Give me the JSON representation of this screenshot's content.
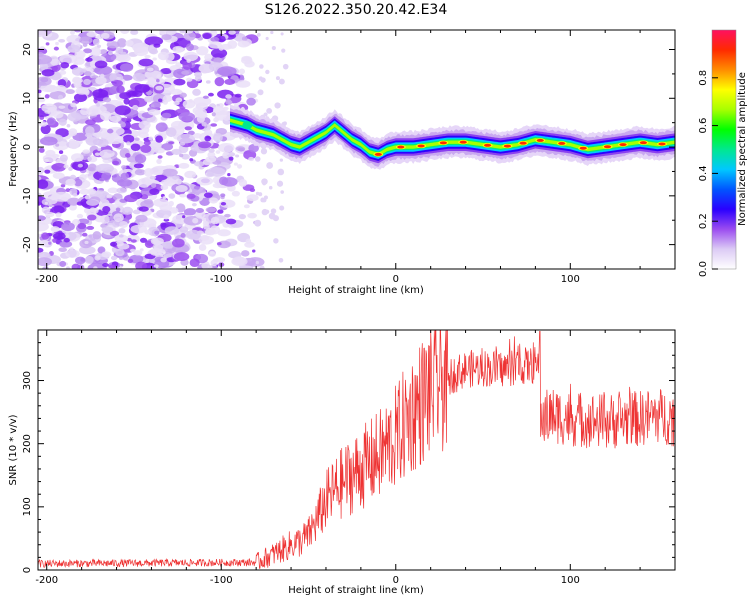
{
  "figure": {
    "title": "S126.2022.350.20.42.E34"
  },
  "chart_data": [
    {
      "type": "heatmap",
      "title": "S126.2022.350.20.42.E34",
      "xlabel": "Height of straight line (km)",
      "ylabel": "Frequency (Hz)",
      "xlim": [
        -205,
        160
      ],
      "ylim": [
        -25,
        24
      ],
      "xticks": [
        -200,
        -100,
        0,
        100
      ],
      "yticks": [
        -20,
        -10,
        0,
        10,
        20
      ],
      "noise_region_x": [
        -205,
        -80
      ],
      "ridge": {
        "x": [
          -95,
          -90,
          -85,
          -80,
          -75,
          -70,
          -65,
          -60,
          -55,
          -50,
          -45,
          -40,
          -35,
          -30,
          -25,
          -20,
          -15,
          -10,
          -5,
          0,
          10,
          20,
          30,
          40,
          50,
          60,
          70,
          80,
          90,
          100,
          110,
          120,
          130,
          140,
          150,
          160
        ],
        "y": [
          5.5,
          5,
          4.5,
          3.5,
          3,
          2.5,
          1.5,
          0.5,
          0,
          1,
          2,
          3,
          4.5,
          3,
          1.5,
          0.5,
          -1,
          -1.5,
          -0.5,
          0,
          0,
          0.5,
          1,
          1,
          0.5,
          0,
          0.5,
          1.5,
          1,
          0.5,
          -0.5,
          0,
          0.5,
          1,
          0.5,
          1
        ]
      },
      "colorbar": {
        "label": "Normalized spectral amplitude",
        "range": [
          0,
          1
        ],
        "ticks": [
          "0.0",
          "0.2",
          "0.4",
          "0.6",
          "0.8"
        ],
        "colors": [
          "#ffffff",
          "#dccbf5",
          "#9b4cf0",
          "#2a00ff",
          "#0055ff",
          "#00c8ff",
          "#00e890",
          "#00ff00",
          "#a8ff00",
          "#ffff00",
          "#ff8c00",
          "#ff2a00",
          "#ff1060"
        ]
      }
    },
    {
      "type": "line",
      "xlabel": "Height of straight line (km)",
      "ylabel": "SNR (10 * v/v)",
      "xlim": [
        -205,
        160
      ],
      "ylim": [
        0,
        380
      ],
      "xticks": [
        -200,
        -100,
        0,
        100
      ],
      "yticks": [
        0,
        100,
        200,
        300
      ],
      "color": "#ee3333",
      "anchors": {
        "x": [
          -205,
          -80,
          -70,
          -60,
          -55,
          -50,
          -45,
          -40,
          -30,
          -20,
          -10,
          0,
          10,
          20,
          30,
          40,
          50,
          60,
          70,
          82,
          83,
          90,
          100,
          120,
          140,
          150,
          160
        ],
        "y": [
          10,
          12,
          25,
          40,
          45,
          55,
          80,
          110,
          140,
          160,
          180,
          210,
          250,
          285,
          305,
          318,
          320,
          318,
          322,
          325,
          240,
          245,
          240,
          235,
          240,
          245,
          240
        ]
      }
    }
  ]
}
